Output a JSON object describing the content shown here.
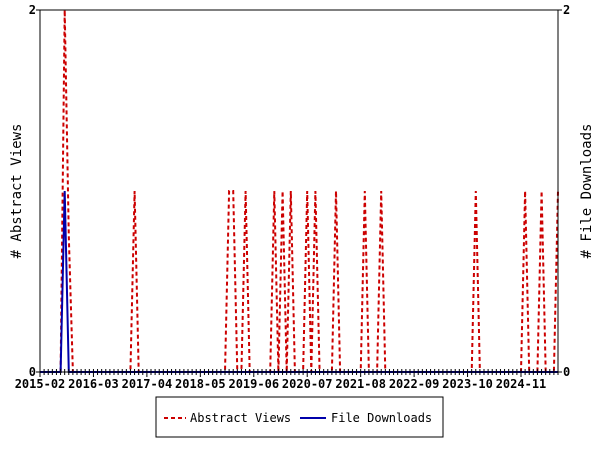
{
  "chart_data": {
    "type": "line",
    "start_month": "2015-02",
    "month_count": 127,
    "x_tick_labels": [
      "2015-02",
      "2016-03",
      "2017-04",
      "2018-05",
      "2019-06",
      "2020-07",
      "2021-08",
      "2022-09",
      "2023-10",
      "2024-11"
    ],
    "ylabel_left": "# Abstract Views",
    "ylabel_right": "# File Downloads",
    "ylim": [
      0,
      2
    ],
    "y_tick_labels_left": [
      "0",
      "2"
    ],
    "y_tick_labels_right": [
      "0",
      "2"
    ],
    "legend_position": "bottom",
    "series": [
      {
        "name": "Abstract Views",
        "color": "#cc0000",
        "style": "dashed",
        "points": [
          {
            "month": "2015-08",
            "value": 2
          },
          {
            "month": "2015-09",
            "value": 0.75
          },
          {
            "month": "2017-01",
            "value": 1
          },
          {
            "month": "2018-12",
            "value": 1
          },
          {
            "month": "2019-01",
            "value": 1
          },
          {
            "month": "2019-04",
            "value": 1
          },
          {
            "month": "2019-11",
            "value": 1
          },
          {
            "month": "2020-01",
            "value": 1
          },
          {
            "month": "2020-03",
            "value": 1
          },
          {
            "month": "2020-07",
            "value": 1
          },
          {
            "month": "2020-09",
            "value": 1
          },
          {
            "month": "2021-02",
            "value": 1
          },
          {
            "month": "2021-09",
            "value": 1
          },
          {
            "month": "2022-01",
            "value": 1
          },
          {
            "month": "2023-12",
            "value": 1
          },
          {
            "month": "2024-12",
            "value": 1
          },
          {
            "month": "2025-04",
            "value": 1
          },
          {
            "month": "2025-08",
            "value": 1
          }
        ]
      },
      {
        "name": "File Downloads",
        "color": "#0000aa",
        "style": "solid",
        "points": [
          {
            "month": "2015-08",
            "value": 1
          }
        ]
      }
    ]
  }
}
